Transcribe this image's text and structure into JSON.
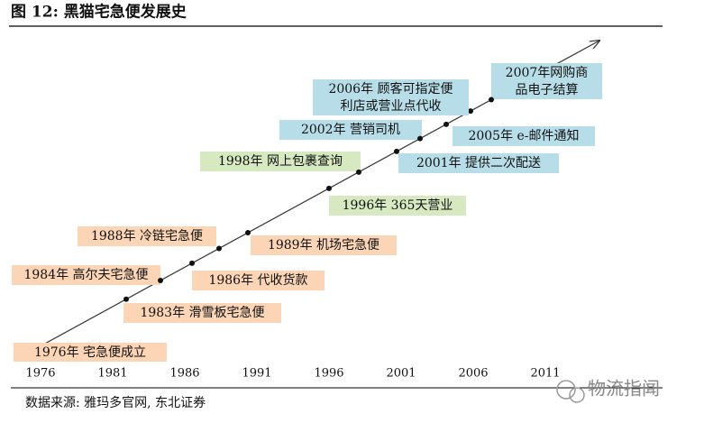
{
  "header": {
    "title": "图 12:  黑猫宅急便发展史"
  },
  "events": [
    {
      "lines": [
        "1976年  宅急便成立"
      ]
    },
    {
      "lines": [
        "1983年  滑雪板宅急便"
      ]
    },
    {
      "lines": [
        "1984年  高尔夫宅急便"
      ]
    },
    {
      "lines": [
        "1986年  代收货款"
      ]
    },
    {
      "lines": [
        "1988年  冷链宅急便"
      ]
    },
    {
      "lines": [
        "1989年  机场宅急便"
      ]
    },
    {
      "lines": [
        "1996年  365天营业"
      ]
    },
    {
      "lines": [
        "1998年  网上包裹查询"
      ]
    },
    {
      "lines": [
        "2001年  提供二次配送"
      ]
    },
    {
      "lines": [
        "2002年  营销司机"
      ]
    },
    {
      "lines": [
        "2005年  e-邮件通知"
      ]
    },
    {
      "lines": [
        "2006年  顾客可指定便",
        "利店或营业点代收"
      ]
    },
    {
      "lines": [
        "2007年网购商",
        "品电子结算"
      ]
    }
  ],
  "axis": {
    "labels": [
      "1976",
      "1981",
      "1986",
      "1991",
      "1996",
      "2001",
      "2006",
      "2011"
    ]
  },
  "footer": {
    "source": "数据来源:  雅玛多官网, 东北证券",
    "watermark": "物流指闻"
  }
}
